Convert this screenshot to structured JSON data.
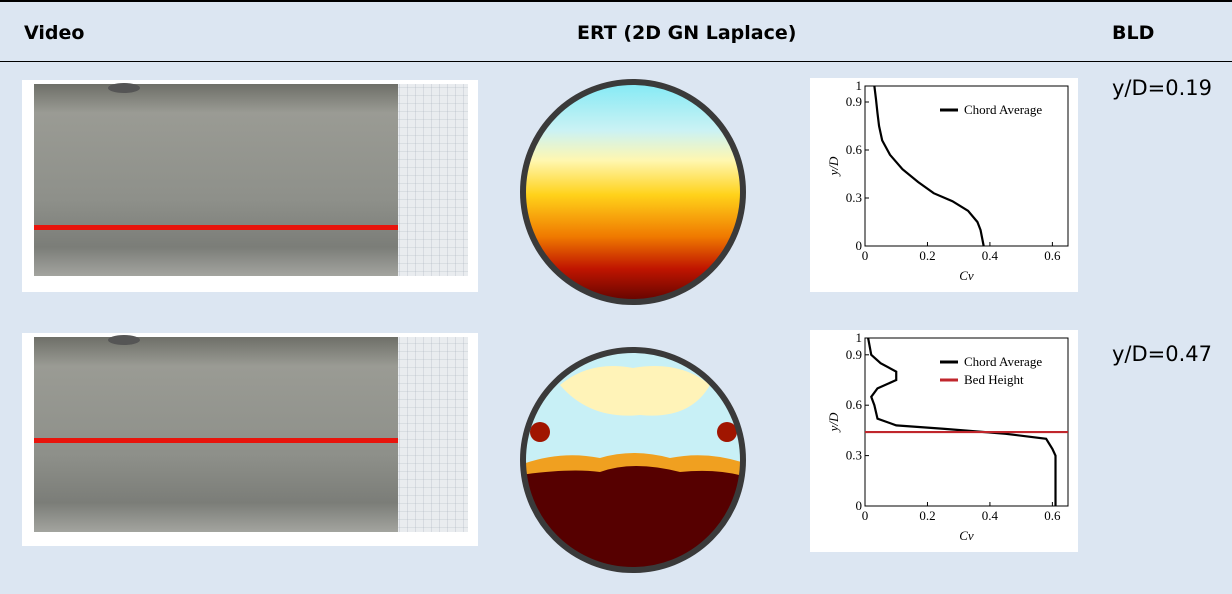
{
  "table": {
    "header": [
      "Video",
      "ERT (2D GN Laplace)",
      "BLD"
    ],
    "rows": [
      {
        "label": "y/D=0.19",
        "plot": {
          "type": "line",
          "xlabel": "Cv",
          "ylabel": "y/D",
          "xlim": [
            0,
            0.65
          ],
          "ylim": [
            0,
            1
          ],
          "xticks": [
            0,
            0.2,
            0.4,
            0.6
          ],
          "yticks": [
            0,
            0.3,
            0.6,
            0.9,
            1
          ],
          "series": [
            {
              "name": "Chord Average",
              "color": "#000000",
              "x": [
                0.38,
                0.375,
                0.37,
                0.36,
                0.33,
                0.28,
                0.22,
                0.17,
                0.12,
                0.08,
                0.055,
                0.045,
                0.04,
                0.035,
                0.03
              ],
              "y": [
                0,
                0.05,
                0.1,
                0.15,
                0.22,
                0.28,
                0.33,
                0.4,
                0.48,
                0.57,
                0.66,
                0.75,
                0.83,
                0.92,
                1
              ]
            }
          ]
        }
      },
      {
        "label": "y/D=0.47",
        "plot": {
          "type": "line",
          "xlabel": "Cv",
          "ylabel": "y/D",
          "xlim": [
            0,
            0.65
          ],
          "ylim": [
            0,
            1
          ],
          "xticks": [
            0,
            0.2,
            0.4,
            0.6
          ],
          "yticks": [
            0,
            0.3,
            0.6,
            0.9,
            1
          ],
          "series": [
            {
              "name": "Chord Average",
              "color": "#000000",
              "x": [
                0.61,
                0.61,
                0.61,
                0.6,
                0.58,
                0.45,
                0.25,
                0.1,
                0.04,
                0.03,
                0.02,
                0.04,
                0.1,
                0.1,
                0.05,
                0.02,
                0.01
              ],
              "y": [
                0,
                0.15,
                0.3,
                0.34,
                0.4,
                0.43,
                0.46,
                0.48,
                0.52,
                0.6,
                0.65,
                0.7,
                0.75,
                0.8,
                0.85,
                0.9,
                1
              ]
            },
            {
              "name": "Bed Height",
              "color": "#c0262c",
              "x": [
                0,
                0.65
              ],
              "y": [
                0.44,
                0.44
              ]
            }
          ]
        }
      }
    ]
  }
}
